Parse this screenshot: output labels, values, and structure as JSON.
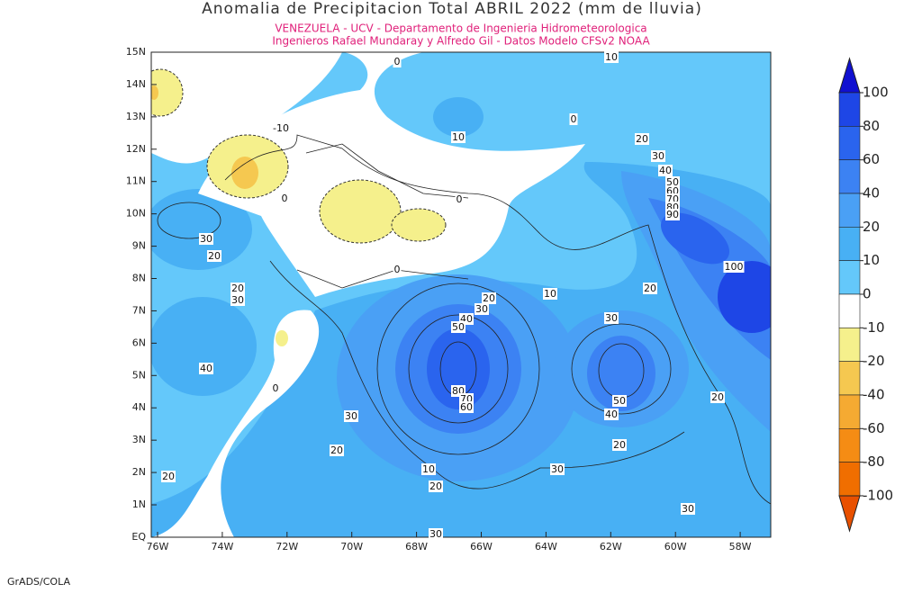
{
  "header": {
    "title": "Anomalia de Precipitacion Total ABRIL 2022 (mm de lluvia)",
    "subtitle_1": "VENEZUELA - UCV - Departamento de Ingenieria Hidrometeorologica",
    "subtitle_2": "Ingenieros Rafael Mundaray y Alfredo Gil - Datos Modelo CFSv2 NOAA"
  },
  "map": {
    "lat_labels": [
      "15N",
      "14N",
      "13N",
      "12N",
      "11N",
      "10N",
      "9N",
      "8N",
      "7N",
      "6N",
      "5N",
      "4N",
      "3N",
      "2N",
      "1N",
      "EQ"
    ],
    "lon_labels": [
      "76W",
      "74W",
      "72W",
      "70W",
      "68W",
      "66W",
      "64W",
      "62W",
      "60W",
      "58W"
    ],
    "contour_labels": [
      "0",
      "10",
      "0",
      "10",
      "-10",
      "20",
      "30",
      "40",
      "50",
      "60",
      "70",
      "80",
      "90",
      "0",
      "0",
      "30",
      "20",
      "100",
      "0",
      "20",
      "30",
      "10",
      "20",
      "20",
      "30",
      "40",
      "50",
      "30",
      "40",
      "0",
      "80",
      "70",
      "60",
      "50",
      "20",
      "40",
      "30",
      "20",
      "20",
      "10",
      "30",
      "20",
      "20",
      "30",
      "30"
    ]
  },
  "colorbar": {
    "labels": [
      "100",
      "80",
      "60",
      "40",
      "20",
      "10",
      "0",
      "-10",
      "-20",
      "-40",
      "-60",
      "-80",
      "-100"
    ],
    "colors": [
      "#1010d0",
      "#1e46e6",
      "#2a64ee",
      "#3c82f3",
      "#4aa0f5",
      "#48b0f4",
      "#64c8fa",
      "#ffffff",
      "#f5f08c",
      "#f5c850",
      "#f5aa32",
      "#f58c14",
      "#f06e00",
      "#e85000"
    ]
  },
  "footer": {
    "credit": "GrADS/COLA"
  }
}
